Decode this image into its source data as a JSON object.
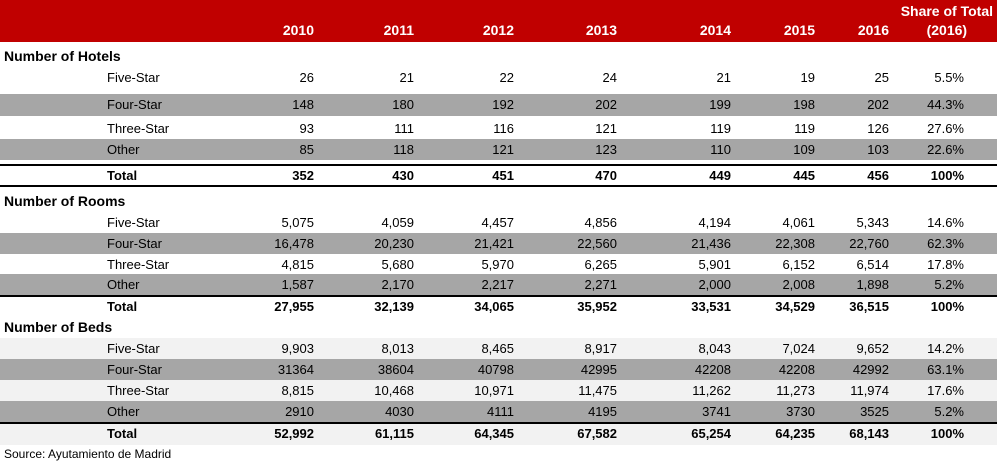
{
  "header": {
    "years": [
      "2010",
      "2011",
      "2012",
      "2013",
      "2014",
      "2015",
      "2016"
    ],
    "share_line1": "Share of Total",
    "share_line2": "(2016)"
  },
  "sections": [
    {
      "title": "Number of Hotels",
      "rows": [
        {
          "label": "Five-Star",
          "values": [
            "26",
            "21",
            "22",
            "24",
            "21",
            "19",
            "25"
          ],
          "share": "5.5%"
        },
        {
          "label": "Four-Star",
          "values": [
            "148",
            "180",
            "192",
            "202",
            "199",
            "198",
            "202"
          ],
          "share": "44.3%"
        },
        {
          "label": "Three-Star",
          "values": [
            "93",
            "111",
            "116",
            "121",
            "119",
            "119",
            "126"
          ],
          "share": "27.6%"
        },
        {
          "label": "Other",
          "values": [
            "85",
            "118",
            "121",
            "123",
            "110",
            "109",
            "103"
          ],
          "share": "22.6%"
        }
      ],
      "total": {
        "label": "Total",
        "values": [
          "352",
          "430",
          "451",
          "470",
          "449",
          "445",
          "456"
        ],
        "share": "100%"
      }
    },
    {
      "title": "Number of Rooms",
      "rows": [
        {
          "label": "Five-Star",
          "values": [
            "5,075",
            "4,059",
            "4,457",
            "4,856",
            "4,194",
            "4,061",
            "5,343"
          ],
          "share": "14.6%"
        },
        {
          "label": "Four-Star",
          "values": [
            "16,478",
            "20,230",
            "21,421",
            "22,560",
            "21,436",
            "22,308",
            "22,760"
          ],
          "share": "62.3%"
        },
        {
          "label": "Three-Star",
          "values": [
            "4,815",
            "5,680",
            "5,970",
            "6,265",
            "5,901",
            "6,152",
            "6,514"
          ],
          "share": "17.8%"
        },
        {
          "label": "Other",
          "values": [
            "1,587",
            "2,170",
            "2,217",
            "2,271",
            "2,000",
            "2,008",
            "1,898"
          ],
          "share": "5.2%"
        }
      ],
      "total": {
        "label": "Total",
        "values": [
          "27,955",
          "32,139",
          "34,065",
          "35,952",
          "33,531",
          "34,529",
          "36,515"
        ],
        "share": "100%"
      }
    },
    {
      "title": "Number of Beds",
      "rows": [
        {
          "label": "Five-Star",
          "values": [
            "9,903",
            "8,013",
            "8,465",
            "8,917",
            "8,043",
            "7,024",
            "9,652"
          ],
          "share": "14.2%"
        },
        {
          "label": "Four-Star",
          "values": [
            "31364",
            "38604",
            "40798",
            "42995",
            "42208",
            "42208",
            "42992"
          ],
          "share": "63.1%"
        },
        {
          "label": "Three-Star",
          "values": [
            "8,815",
            "10,468",
            "10,971",
            "11,475",
            "11,262",
            "11,273",
            "11,974"
          ],
          "share": "17.6%"
        },
        {
          "label": "Other",
          "values": [
            "2910",
            "4030",
            "4111",
            "4195",
            "3741",
            "3730",
            "3525"
          ],
          "share": "5.2%"
        }
      ],
      "total": {
        "label": "Total",
        "values": [
          "52,992",
          "61,115",
          "64,345",
          "67,582",
          "65,254",
          "64,235",
          "68,143"
        ],
        "share": "100%"
      }
    }
  ],
  "source": "Source: Ayutamiento de Madrid"
}
